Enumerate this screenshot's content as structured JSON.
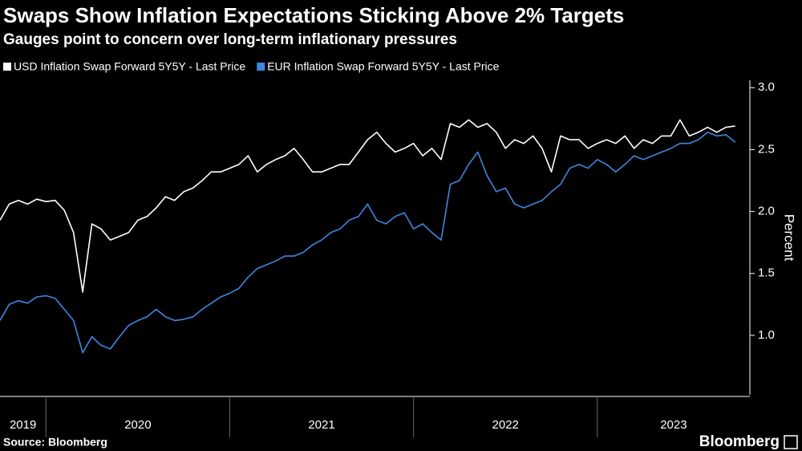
{
  "chart_data": {
    "type": "line",
    "title": "Swaps Show Inflation Expectations Sticking Above 2% Targets",
    "subtitle": "Gauges point to concern over long-term inflationary pressures",
    "y_label": "Percent",
    "source": "Source: Bloomberg",
    "brand": "Bloomberg",
    "x": [
      2019.75,
      2019.8,
      2019.85,
      2019.9,
      2019.95,
      2020.0,
      2020.05,
      2020.1,
      2020.15,
      2020.2,
      2020.25,
      2020.3,
      2020.35,
      2020.4,
      2020.45,
      2020.5,
      2020.55,
      2020.6,
      2020.65,
      2020.7,
      2020.75,
      2020.8,
      2020.85,
      2020.9,
      2020.95,
      2021.0,
      2021.05,
      2021.1,
      2021.15,
      2021.2,
      2021.25,
      2021.3,
      2021.35,
      2021.4,
      2021.45,
      2021.5,
      2021.55,
      2021.6,
      2021.65,
      2021.7,
      2021.75,
      2021.8,
      2021.85,
      2021.9,
      2021.95,
      2022.0,
      2022.05,
      2022.1,
      2022.15,
      2022.2,
      2022.25,
      2022.3,
      2022.35,
      2022.4,
      2022.45,
      2022.5,
      2022.55,
      2022.6,
      2022.65,
      2022.7,
      2022.75,
      2022.8,
      2022.85,
      2022.9,
      2022.95,
      2023.0,
      2023.05,
      2023.1,
      2023.15,
      2023.2,
      2023.25,
      2023.3,
      2023.35,
      2023.4,
      2023.45,
      2023.5,
      2023.55,
      2023.6,
      2023.65,
      2023.7,
      2023.75
    ],
    "series": [
      {
        "name": "USD Inflation Swap Forward 5Y5Y - Last Price",
        "color": "#ffffff",
        "values": [
          1.93,
          2.06,
          2.09,
          2.06,
          2.1,
          2.08,
          2.09,
          2.01,
          1.83,
          1.35,
          1.9,
          1.86,
          1.77,
          1.8,
          1.83,
          1.93,
          1.96,
          2.03,
          2.12,
          2.09,
          2.16,
          2.19,
          2.25,
          2.32,
          2.32,
          2.35,
          2.38,
          2.45,
          2.32,
          2.38,
          2.42,
          2.45,
          2.51,
          2.42,
          2.32,
          2.32,
          2.35,
          2.38,
          2.38,
          2.48,
          2.58,
          2.64,
          2.55,
          2.48,
          2.51,
          2.55,
          2.45,
          2.51,
          2.42,
          2.71,
          2.68,
          2.74,
          2.68,
          2.71,
          2.64,
          2.51,
          2.58,
          2.55,
          2.61,
          2.51,
          2.32,
          2.61,
          2.58,
          2.58,
          2.51,
          2.55,
          2.58,
          2.55,
          2.61,
          2.51,
          2.58,
          2.55,
          2.61,
          2.61,
          2.74,
          2.61,
          2.64,
          2.68,
          2.64,
          2.68,
          2.69
        ]
      },
      {
        "name": "EUR Inflation Swap Forward 5Y5Y - Last Price",
        "color": "#3f86e0",
        "values": [
          1.12,
          1.25,
          1.28,
          1.26,
          1.31,
          1.32,
          1.3,
          1.21,
          1.12,
          0.86,
          0.99,
          0.92,
          0.89,
          0.99,
          1.08,
          1.12,
          1.15,
          1.21,
          1.15,
          1.12,
          1.13,
          1.15,
          1.21,
          1.26,
          1.31,
          1.34,
          1.38,
          1.47,
          1.54,
          1.57,
          1.6,
          1.64,
          1.64,
          1.67,
          1.73,
          1.77,
          1.83,
          1.86,
          1.93,
          1.96,
          2.06,
          1.93,
          1.9,
          1.96,
          1.99,
          1.86,
          1.9,
          1.83,
          1.77,
          2.22,
          2.25,
          2.38,
          2.48,
          2.29,
          2.16,
          2.19,
          2.06,
          2.03,
          2.06,
          2.09,
          2.16,
          2.22,
          2.35,
          2.38,
          2.35,
          2.42,
          2.38,
          2.32,
          2.38,
          2.45,
          2.42,
          2.45,
          2.48,
          2.51,
          2.55,
          2.55,
          2.58,
          2.64,
          2.61,
          2.62,
          2.56
        ]
      }
    ],
    "xlim": [
      2019.75,
      2023.83
    ],
    "xticks": [
      2019,
      2020,
      2021,
      2022,
      2023
    ],
    "ylim": [
      0.52,
      3.06
    ],
    "yticks": [
      {
        "value": 1,
        "label": "1.0"
      },
      1.5,
      {
        "value": 2,
        "label": "2.0"
      },
      2.5,
      {
        "value": 3,
        "label": "3.0"
      }
    ],
    "grid": false
  }
}
